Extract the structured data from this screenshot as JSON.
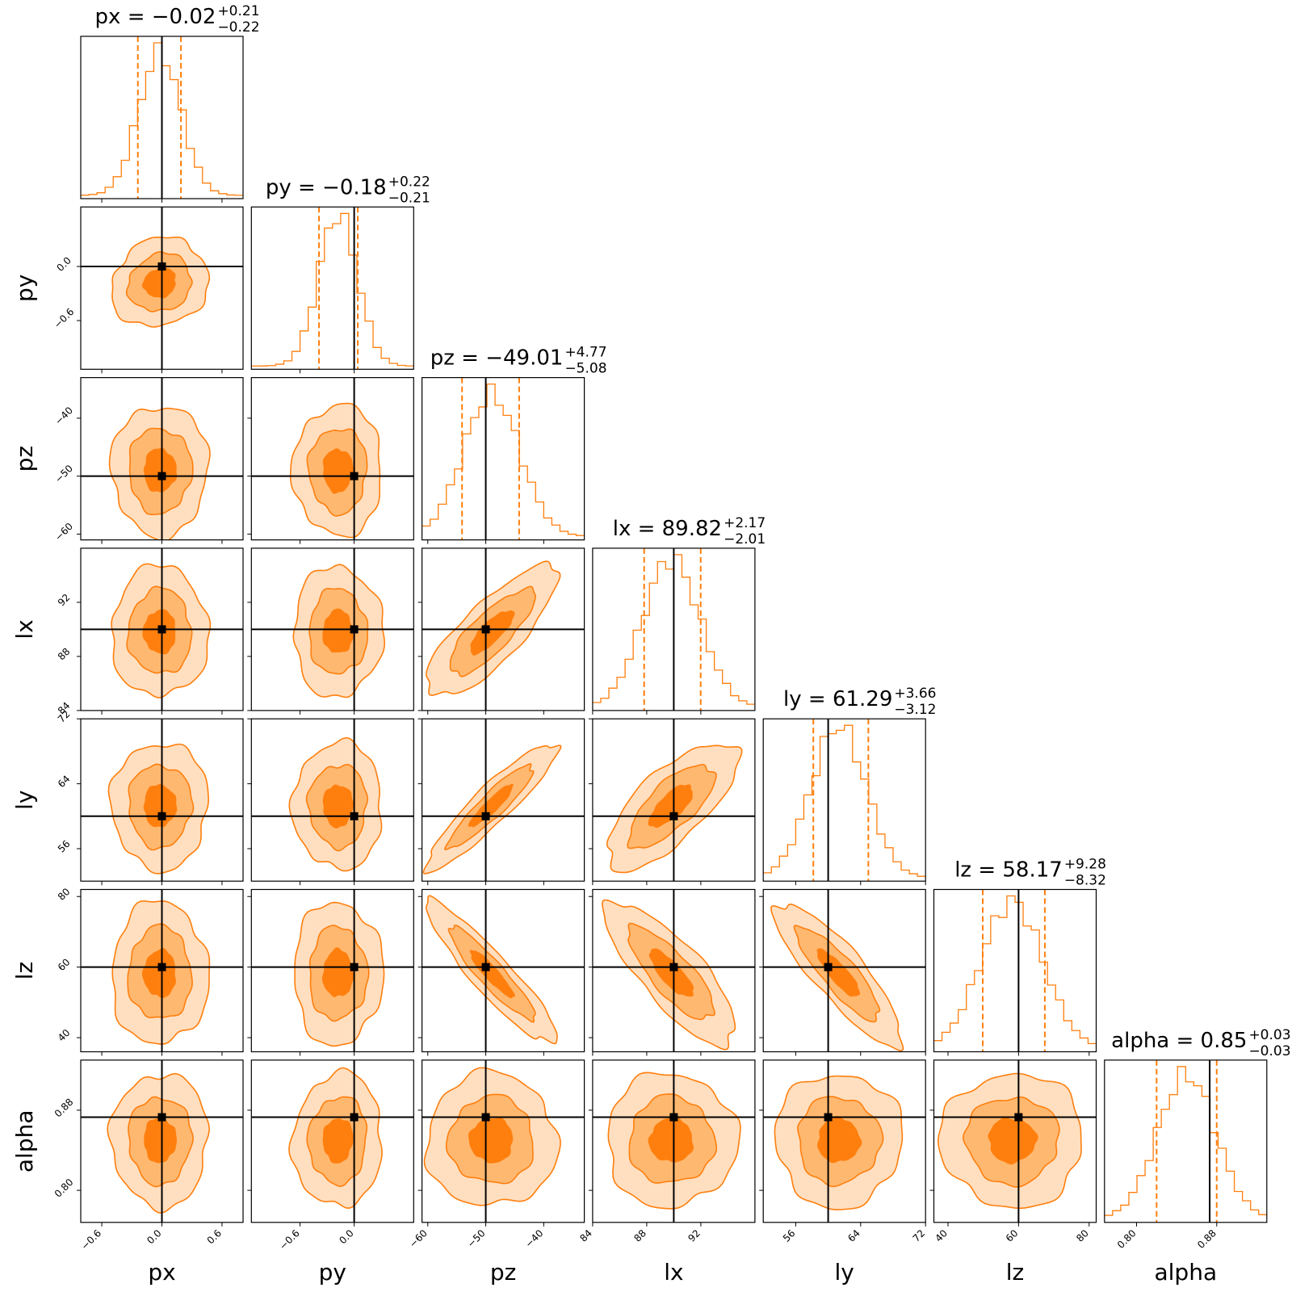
{
  "chart_data": {
    "type": "corner",
    "parameters": [
      {
        "name": "px",
        "label": "px",
        "median": -0.02,
        "plus": 0.21,
        "minus": 0.22,
        "title_value": "−0.02",
        "title_plus": "+0.21",
        "title_minus": "−0.22",
        "range": [
          -0.81,
          0.81
        ],
        "truth": 0.0,
        "ticks": [
          -0.6,
          0.0,
          0.6
        ],
        "tick_labels": [
          "−0.6",
          "0.0",
          "0.6"
        ],
        "sigma": 0.21
      },
      {
        "name": "py",
        "label": "py",
        "median": -0.18,
        "plus": 0.22,
        "minus": 0.21,
        "title_value": "−0.18",
        "title_plus": "+0.22",
        "title_minus": "−0.21",
        "range": [
          -1.14,
          0.66
        ],
        "truth": 0.0,
        "ticks": [
          -0.6,
          0.0
        ],
        "tick_labels": [
          "−0.6",
          "0.0"
        ],
        "sigma": 0.215
      },
      {
        "name": "pz",
        "label": "pz",
        "median": -49.01,
        "plus": 4.77,
        "minus": 5.08,
        "title_value": "−49.01",
        "title_plus": "+4.77",
        "title_minus": "−5.08",
        "range": [
          -61.0,
          -33.0
        ],
        "truth": -50.0,
        "ticks": [
          -60,
          -50,
          -40
        ],
        "tick_labels": [
          "−60",
          "−50",
          "−40"
        ],
        "sigma": 4.9
      },
      {
        "name": "lx",
        "label": "lx",
        "median": 89.82,
        "plus": 2.17,
        "minus": 2.01,
        "title_value": "89.82",
        "title_plus": "+2.17",
        "title_minus": "−2.01",
        "range": [
          84.0,
          96.0
        ],
        "truth": 90.0,
        "ticks": [
          84,
          88,
          92
        ],
        "tick_labels": [
          "84",
          "88",
          "92"
        ],
        "sigma": 2.1
      },
      {
        "name": "ly",
        "label": "ly",
        "median": 61.29,
        "plus": 3.66,
        "minus": 3.12,
        "title_value": "61.29",
        "title_plus": "+3.66",
        "title_minus": "−3.12",
        "range": [
          52.0,
          72.0
        ],
        "truth": 60.0,
        "ticks": [
          56,
          64,
          72
        ],
        "tick_labels": [
          "56",
          "64",
          "72"
        ],
        "sigma": 3.4
      },
      {
        "name": "lz",
        "label": "lz",
        "median": 58.17,
        "plus": 9.28,
        "minus": 8.32,
        "title_value": "58.17",
        "title_plus": "+9.28",
        "title_minus": "−8.32",
        "range": [
          36.0,
          82.0
        ],
        "truth": 60.0,
        "ticks": [
          40,
          60,
          80
        ],
        "tick_labels": [
          "40",
          "60",
          "80"
        ],
        "sigma": 8.8
      },
      {
        "name": "alpha",
        "label": "alpha",
        "median": 0.85,
        "plus": 0.03,
        "minus": 0.03,
        "title_value": "0.85",
        "title_plus": "+0.03",
        "title_minus": "−0.03",
        "range": [
          0.768,
          0.93
        ],
        "truth": 0.873,
        "ticks": [
          0.8,
          0.88
        ],
        "tick_labels": [
          "0.80",
          "0.88"
        ],
        "sigma": 0.029
      }
    ],
    "correlations": [
      [
        "pz",
        "lx",
        0.8
      ],
      [
        "pz",
        "ly",
        0.92
      ],
      [
        "lx",
        "ly",
        0.72
      ],
      [
        "pz",
        "lz",
        -0.92
      ],
      [
        "lx",
        "lz",
        -0.8
      ],
      [
        "ly",
        "lz",
        -0.86
      ],
      [
        "px",
        "py",
        0.12
      ],
      [
        "py",
        "alpha",
        0.05
      ]
    ],
    "sigma_levels": [
      0.5,
      1.0,
      1.5
    ],
    "colors": {
      "fill": "#ff7f0e",
      "line": "#ff7f0e",
      "truth": "#000000"
    }
  }
}
